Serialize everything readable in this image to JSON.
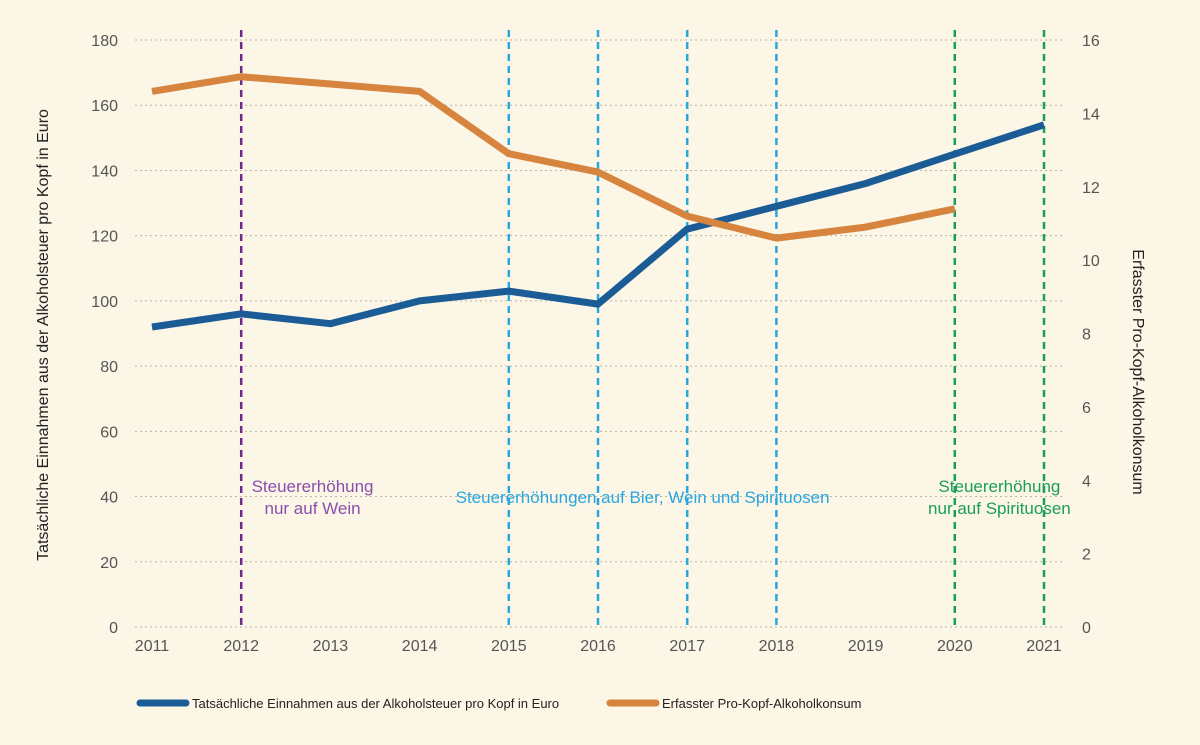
{
  "chart_data": {
    "type": "line",
    "x": [
      2011,
      2012,
      2013,
      2014,
      2015,
      2016,
      2017,
      2018,
      2019,
      2020,
      2021
    ],
    "x_tick_labels": [
      "2011",
      "2012",
      "2013",
      "2014",
      "2015",
      "2016",
      "2017",
      "2018",
      "2019",
      "2020",
      "2021"
    ],
    "series": [
      {
        "name": "Tatsächliche Einnahmen aus der Alkoholsteuer pro Kopf in Euro",
        "axis": "left",
        "color": "#1b5c96",
        "values": [
          92,
          96,
          93,
          100,
          103,
          99,
          122,
          129,
          136,
          145,
          154
        ]
      },
      {
        "name": "Erfasster Pro-Kopf-Alkoholkonsum",
        "axis": "right",
        "color": "#d6843e",
        "values": [
          14.6,
          15.0,
          14.8,
          14.6,
          12.9,
          12.4,
          11.2,
          10.6,
          10.9,
          11.4,
          null
        ]
      }
    ],
    "y_left": {
      "label": "Tatsächliche Einnahmen aus der Alkoholsteuer pro Kopf in Euro",
      "range": [
        0,
        180
      ],
      "ticks": [
        0,
        20,
        40,
        60,
        80,
        100,
        120,
        140,
        160,
        180
      ]
    },
    "y_right": {
      "label": "Erfasster Pro-Kopf-Alkoholkonsum",
      "range": [
        0,
        16
      ],
      "ticks": [
        0,
        2,
        4,
        6,
        8,
        10,
        12,
        14,
        16
      ]
    },
    "grid": "horizontal-dotted",
    "legend_position": "bottom-left",
    "markers": [
      {
        "x": 2012,
        "color": "#6b2a8c"
      },
      {
        "x": 2015,
        "color": "#2aa7e0"
      },
      {
        "x": 2016,
        "color": "#2aa7e0"
      },
      {
        "x": 2017,
        "color": "#2aa7e0"
      },
      {
        "x": 2018,
        "color": "#2aa7e0"
      },
      {
        "x": 2020,
        "color": "#1a9e5a"
      },
      {
        "x": 2021,
        "color": "#1a9e5a"
      }
    ],
    "annotations": [
      {
        "lines": [
          "Steuererhöhung",
          "nur auf Wein"
        ],
        "x": 2012.8,
        "color": "#8a4fae"
      },
      {
        "lines": [
          "Steuererhöhungen auf Bier, Wein und Spirituosen"
        ],
        "x": 2016.5,
        "color": "#2aa7e0"
      },
      {
        "lines": [
          "Steuererhöhung",
          "nur auf Spirituosen"
        ],
        "x": 2020.5,
        "color": "#1a9e5a"
      }
    ]
  }
}
